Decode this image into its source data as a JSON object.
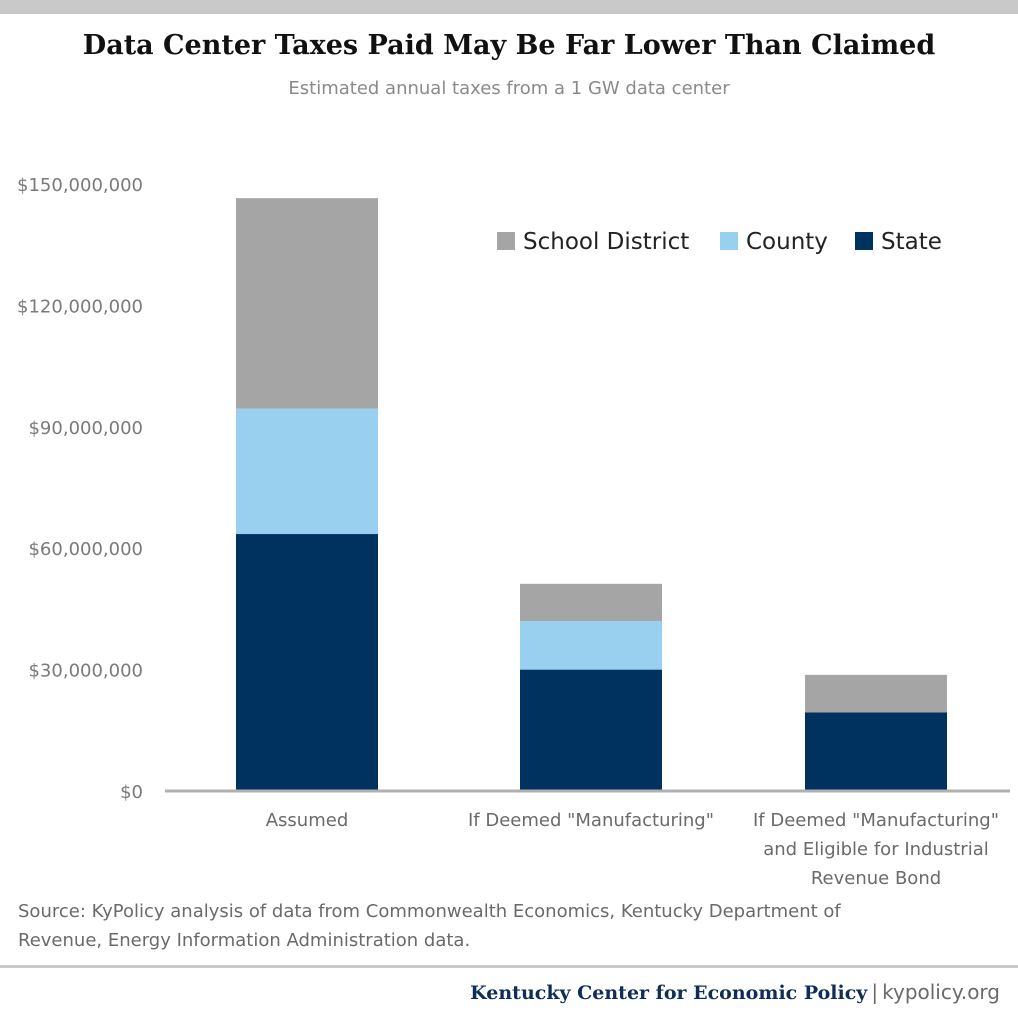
{
  "header": {
    "title": "Data Center Taxes Paid May Be Far Lower Than Claimed",
    "subtitle": "Estimated annual taxes from a 1 GW data center"
  },
  "chart_data": {
    "type": "bar",
    "stacked": true,
    "categories": [
      [
        "Assumed"
      ],
      [
        "If Deemed \"Manufacturing\""
      ],
      [
        "If Deemed \"Manufacturing\"",
        "and Eligible for Industrial",
        "Revenue Bond"
      ]
    ],
    "series": [
      {
        "name": "State",
        "color": "#00325f",
        "values": [
          63500000,
          30000000,
          19400000
        ]
      },
      {
        "name": "County",
        "color": "#99d0ef",
        "values": [
          31000000,
          12000000,
          0
        ]
      },
      {
        "name": "School District",
        "color": "#a5a5a5",
        "values": [
          52000000,
          9200000,
          9300000
        ]
      }
    ],
    "ylim": [
      0,
      150000000
    ],
    "yticks": [
      0,
      30000000,
      60000000,
      90000000,
      120000000,
      150000000
    ],
    "ytick_labels": [
      "$0",
      "$30,000,000",
      "$60,000,000",
      "$90,000,000",
      "$120,000,000",
      "$150,000,000"
    ],
    "legend_order": [
      "School District",
      "County",
      "State"
    ],
    "legend_position": "top-right",
    "grid": false
  },
  "source": {
    "line1": "Source:  KyPolicy analysis of data from Commonwealth Economics, Kentucky Department of",
    "line2": "Revenue, Energy Information Administration data."
  },
  "footer": {
    "org": "Kentucky Center for Economic Policy",
    "separator": "|",
    "site": "kypolicy.org"
  }
}
